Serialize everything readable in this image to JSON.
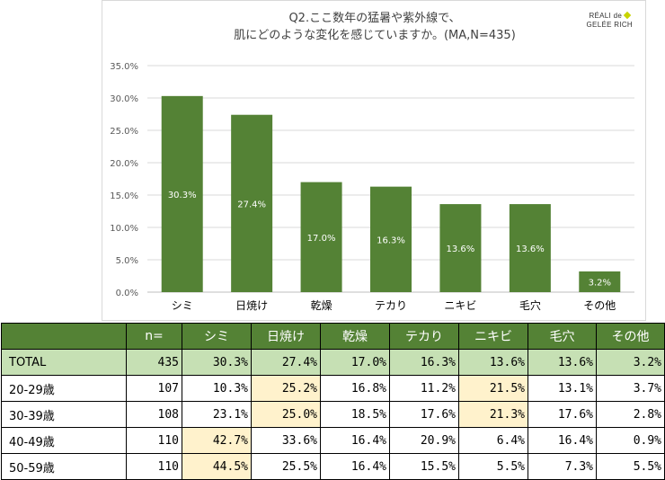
{
  "chart_data": {
    "type": "bar",
    "title": "Q2.ここ数年の猛暑や紫外線で、",
    "subtitle": "肌にどのような変化を感じていますか。(MA,N=435)",
    "categories": [
      "シミ",
      "日焼け",
      "乾燥",
      "テカり",
      "ニキビ",
      "毛穴",
      "その他"
    ],
    "values": [
      30.3,
      27.4,
      17.0,
      16.3,
      13.6,
      13.6,
      3.2
    ],
    "data_labels": [
      "30.3%",
      "27.4%",
      "17.0%",
      "16.3%",
      "13.6%",
      "13.6%",
      "3.2%"
    ],
    "y_ticks": [
      "35.0%",
      "30.0%",
      "25.0%",
      "20.0%",
      "15.0%",
      "10.0%",
      "5.0%",
      "0.0%"
    ],
    "ylim": [
      0,
      35
    ],
    "bar_color": "#548235",
    "gridlines": true,
    "xlabel": "",
    "ylabel": ""
  },
  "logo": {
    "line1": "RÉALI de",
    "line2": "GELÉE RICH"
  },
  "table": {
    "headers": [
      "",
      "n=",
      "シミ",
      "日焼け",
      "乾燥",
      "テカり",
      "ニキビ",
      "毛穴",
      "その他"
    ],
    "rows": [
      {
        "label": "TOTAL",
        "n": "435",
        "values": [
          "30.3%",
          "27.4%",
          "17.0%",
          "16.3%",
          "13.6%",
          "13.6%",
          "3.2%"
        ],
        "highlight": []
      },
      {
        "label": "20-29歳",
        "n": "107",
        "values": [
          "10.3%",
          "25.2%",
          "16.8%",
          "11.2%",
          "21.5%",
          "13.1%",
          "3.7%"
        ],
        "highlight": [
          1,
          4
        ]
      },
      {
        "label": "30-39歳",
        "n": "108",
        "values": [
          "23.1%",
          "25.0%",
          "18.5%",
          "17.6%",
          "21.3%",
          "17.6%",
          "2.8%"
        ],
        "highlight": [
          1,
          4
        ]
      },
      {
        "label": "40-49歳",
        "n": "110",
        "values": [
          "42.7%",
          "33.6%",
          "16.4%",
          "20.9%",
          "6.4%",
          "16.4%",
          "0.9%"
        ],
        "highlight": [
          0
        ]
      },
      {
        "label": "50-59歳",
        "n": "110",
        "values": [
          "44.5%",
          "25.5%",
          "16.4%",
          "15.5%",
          "5.5%",
          "7.3%",
          "5.5%"
        ],
        "highlight": [
          0
        ]
      }
    ],
    "header_color": "#548235",
    "total_row_color": "#c6e0b4",
    "highlight_color": "#fff2cc"
  }
}
